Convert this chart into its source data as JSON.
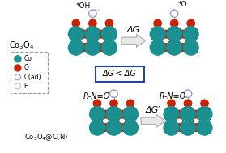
{
  "co_color": "#1a9090",
  "o_color": "#cc2200",
  "oad_color": "#9999cc",
  "h_color": "#ddbbbb",
  "co_r": 0.036,
  "o_r": 0.018,
  "oad_r": 0.018,
  "h_r": 0.011,
  "box_color": "#2244aa",
  "arrow_face": "#e8e8e8",
  "arrow_edge": "#aaaaaa",
  "label_dg": "ΔG",
  "label_dgp": "ΔG′",
  "label_dgpltdg": "ΔG′< ΔG",
  "label_oh": "*OH",
  "label_o_top": "*O",
  "label_rno": "R-N≡O",
  "co3o4_label": "Co$_3$O$_4$",
  "co3o4cn_label": "Co$_3$O$_4$@C(N)"
}
